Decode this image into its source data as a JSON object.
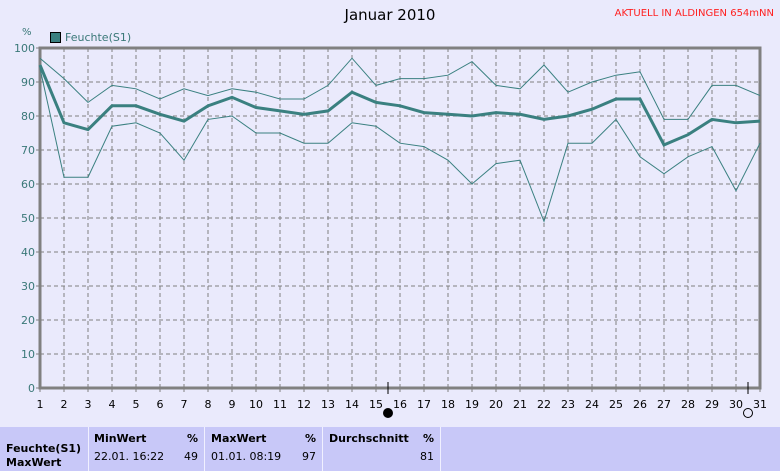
{
  "title": "Januar 2010",
  "station": "AKTUELL IN ALDINGEN 654mNN",
  "chart_data": {
    "type": "line",
    "ylabel": "%",
    "ylim": [
      0,
      100
    ],
    "yticks": [
      0,
      10,
      20,
      30,
      40,
      50,
      60,
      70,
      80,
      90,
      100
    ],
    "x": [
      1,
      2,
      3,
      4,
      5,
      6,
      7,
      8,
      9,
      10,
      11,
      12,
      13,
      14,
      15,
      16,
      17,
      18,
      19,
      20,
      21,
      22,
      23,
      24,
      25,
      26,
      27,
      28,
      29,
      30,
      31
    ],
    "grid": true,
    "legend": {
      "label": "Feuchte(S1)",
      "placement": "top-left"
    },
    "color": "#3a8080",
    "series": [
      {
        "role": "max",
        "values": [
          97,
          91,
          84,
          89,
          88,
          85,
          88,
          86,
          88,
          87,
          85,
          85,
          89,
          97,
          89,
          91,
          91,
          92,
          96,
          89,
          88,
          95,
          87,
          90,
          92,
          93,
          79,
          79,
          89,
          89,
          86
        ]
      },
      {
        "role": "avg",
        "values": [
          95,
          78,
          76,
          83,
          83,
          80.5,
          78.5,
          83,
          85.5,
          82.5,
          81.5,
          80.5,
          81.5,
          87,
          84,
          83,
          81,
          80.5,
          80,
          81,
          80.5,
          79,
          80,
          82,
          85,
          85,
          71.5,
          74.5,
          79,
          78,
          78.5
        ]
      },
      {
        "role": "min",
        "values": [
          94,
          62,
          62,
          77,
          78,
          75,
          67,
          79,
          80,
          75,
          75,
          72,
          72,
          78,
          77,
          72,
          71,
          67,
          60,
          66,
          67,
          49,
          72,
          72,
          79,
          68,
          63,
          68,
          71,
          58,
          72
        ]
      }
    ],
    "markers": [
      {
        "x": 15.5,
        "icon": "new-moon-icon"
      },
      {
        "x": 30.5,
        "icon": "full-moon-icon"
      }
    ]
  },
  "table": {
    "row_label": "Feuchte(S1)",
    "next_row_label": "MaxWert",
    "min": {
      "label": "MinWert",
      "unit": "%",
      "time": "22.01.  16:22",
      "value": "49"
    },
    "max": {
      "label": "MaxWert",
      "unit": "%",
      "time": "01.01.  08:19",
      "value": "97"
    },
    "avg": {
      "label": "Durchschnitt",
      "unit": "%",
      "value": "81"
    }
  }
}
